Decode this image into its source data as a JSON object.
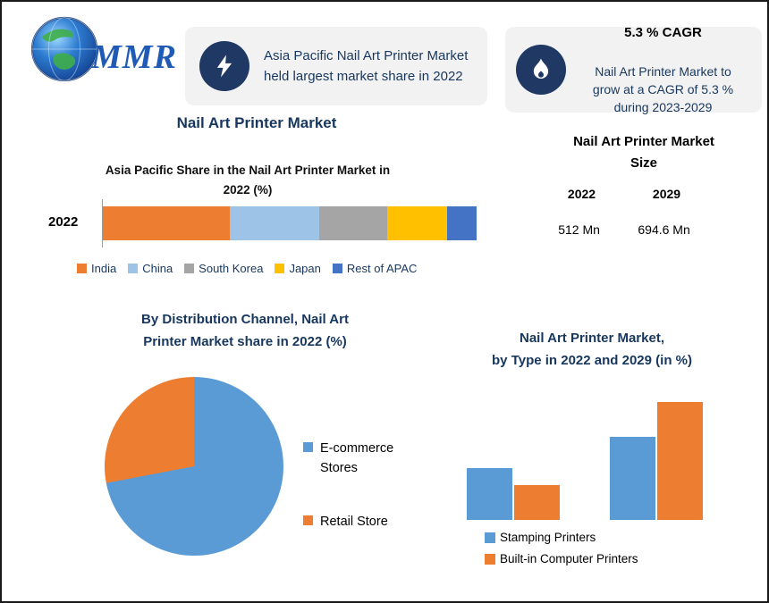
{
  "logo": {
    "text": "MMR"
  },
  "callout_left": {
    "icon": "lightning-icon",
    "text": "Asia Pacific Nail Art Printer Market\nheld largest market share in 2022"
  },
  "callout_right": {
    "icon": "flame-icon",
    "title": "5.3 % CAGR",
    "text": "Nail Art Printer Market to\ngrow at a CAGR of 5.3 %\nduring 2023-2029"
  },
  "main_title": "Nail Art Printer Market",
  "market_size": {
    "title": "Nail Art Printer Market\nSize",
    "columns": [
      "2022",
      "2029"
    ],
    "values": [
      "512 Mn",
      "694.6 Mn"
    ]
  },
  "colors": {
    "navy": "#1F3864",
    "card_bg": "#F2F2F2",
    "title_text": "#17375E"
  },
  "chart_data": [
    {
      "type": "bar",
      "subtype": "horizontal-stacked",
      "title": "Asia Pacific Share in the Nail Art Printer Market in\n2022 (%)",
      "categories": [
        "2022"
      ],
      "series": [
        {
          "name": "India",
          "values": [
            34
          ],
          "color": "#ED7D31"
        },
        {
          "name": "China",
          "values": [
            24
          ],
          "color": "#9DC3E6"
        },
        {
          "name": "South Korea",
          "values": [
            18
          ],
          "color": "#A5A5A5"
        },
        {
          "name": "Japan",
          "values": [
            16
          ],
          "color": "#FFC000"
        },
        {
          "name": "Rest of APAC",
          "values": [
            8
          ],
          "color": "#4472C4"
        }
      ],
      "xlim": [
        0,
        100
      ],
      "legend_position": "bottom",
      "grid": false
    },
    {
      "type": "pie",
      "title": "By Distribution Channel, Nail Art\nPrinter Market share in 2022  (%)",
      "labels": [
        "E-commerce Stores",
        "Retail Store"
      ],
      "values": [
        72,
        28
      ],
      "colors": [
        "#5B9BD5",
        "#ED7D31"
      ],
      "legend_position": "right"
    },
    {
      "type": "bar",
      "subtype": "grouped-vertical",
      "title": "Nail Art Printer Market,\nby Type in 2022 and 2029 (in %)",
      "categories": [
        "2022",
        "2029"
      ],
      "series": [
        {
          "name": "Stamping Printers",
          "values": [
            30,
            48
          ],
          "color": "#5B9BD5"
        },
        {
          "name": "Built-in Computer Printers",
          "values": [
            20,
            68
          ],
          "color": "#ED7D31"
        }
      ],
      "legend_position": "bottom",
      "grid": false
    }
  ]
}
